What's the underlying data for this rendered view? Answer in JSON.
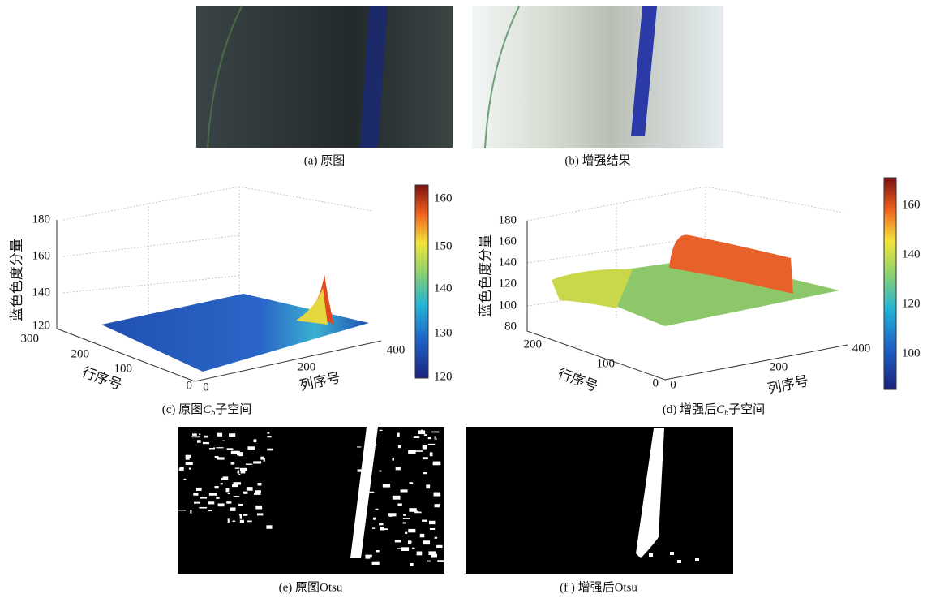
{
  "panels": [
    {
      "caption": "(a) 原图"
    },
    {
      "caption": "(b) 增强结果"
    },
    {
      "caption_prefix": "(c) 原图",
      "caption_symbol": "C",
      "caption_sub": "b",
      "caption_suffix": "子空间",
      "z_label": "蓝色色度分量",
      "row_label": "行序号",
      "col_label": "列序号",
      "z_ticks": [
        "180",
        "160",
        "140",
        "120"
      ],
      "row_ticks": [
        "300",
        "200",
        "100",
        "0"
      ],
      "col_ticks": [
        "0",
        "200",
        "400"
      ],
      "colorbar_ticks": [
        "160",
        "150",
        "140",
        "130",
        "120"
      ]
    },
    {
      "caption_prefix": "(d) 增强后",
      "caption_symbol": "C",
      "caption_sub": "b",
      "caption_suffix": "子空间",
      "z_label": "蓝色色度分量",
      "row_label": "行序号",
      "col_label": "列序号",
      "z_ticks": [
        "180",
        "160",
        "140",
        "120",
        "100",
        "80"
      ],
      "row_ticks": [
        "200",
        "100",
        "0"
      ],
      "col_ticks": [
        "0",
        "200",
        "400"
      ],
      "colorbar_ticks": [
        "160",
        "140",
        "120",
        "100"
      ]
    },
    {
      "caption": "(e) 原图Otsu"
    },
    {
      "caption": "(f ) 增强后Otsu"
    }
  ]
}
